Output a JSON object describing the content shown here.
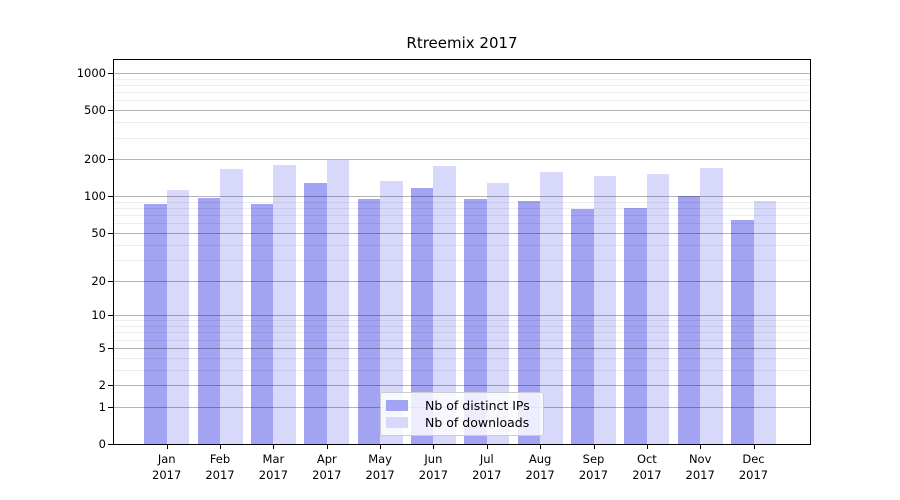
{
  "figure": {
    "background": "#ffffff"
  },
  "chart_data": {
    "type": "bar",
    "title": "Rtreemix 2017",
    "categories": [
      "Jan 2017",
      "Feb 2017",
      "Mar 2017",
      "Apr 2017",
      "May 2017",
      "Jun 2017",
      "Jul 2017",
      "Aug 2017",
      "Sep 2017",
      "Oct 2017",
      "Nov 2017",
      "Dec 2017"
    ],
    "series": [
      {
        "name": "Nb of distinct IPs",
        "color": "#a3a3f3",
        "values": [
          87,
          97,
          87,
          128,
          95,
          117,
          94,
          91,
          79,
          80,
          100,
          64
        ]
      },
      {
        "name": "Nb of downloads",
        "color": "#d8d8fa",
        "values": [
          113,
          167,
          179,
          196,
          133,
          176,
          128,
          156,
          146,
          153,
          169,
          91
        ]
      }
    ],
    "xlabel": "",
    "ylabel": "",
    "yscale": "log1p",
    "ylim": [
      0,
      1273
    ],
    "y_ticks": [
      0,
      1,
      2,
      5,
      10,
      20,
      50,
      100,
      200,
      500,
      1000
    ],
    "y_tick_labels": [
      "0",
      "1",
      "2",
      "5",
      "10",
      "20",
      "50",
      "100",
      "200",
      "500",
      "1000"
    ],
    "y_minor_ticks": [
      3,
      4,
      6,
      7,
      8,
      9,
      30,
      40,
      60,
      70,
      80,
      90,
      300,
      400,
      600,
      700,
      800,
      900
    ],
    "grid": "major and minor horizontal lines drawn above bars",
    "legend_position": "lower center",
    "colors": {
      "major_grid": "#b0b0b0",
      "minor_grid": "#ededed",
      "spine": "#000000",
      "text": "#000000"
    }
  }
}
